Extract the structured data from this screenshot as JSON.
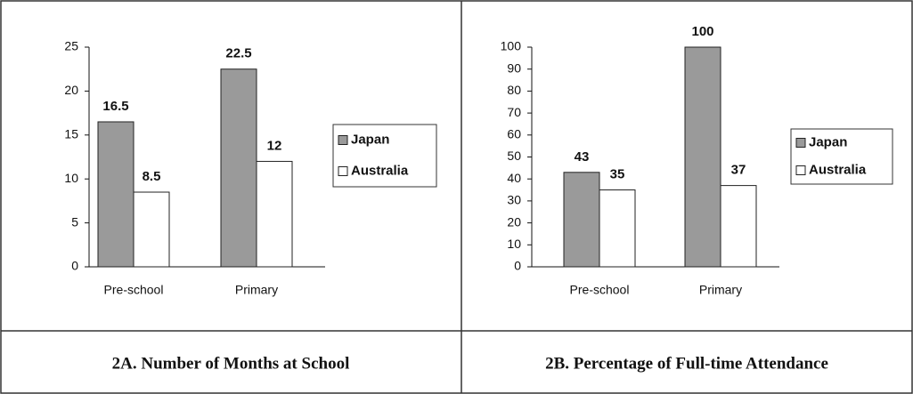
{
  "chart_data": [
    {
      "type": "bar",
      "title": "2A. Number of Months at School",
      "categories": [
        "Pre-school",
        "Primary"
      ],
      "series": [
        {
          "name": "Japan",
          "color": "#9a9a9a",
          "values": [
            16.5,
            22.5
          ]
        },
        {
          "name": "Australia",
          "color": "#ffffff",
          "values": [
            8.5,
            12
          ]
        }
      ],
      "ylim": [
        0,
        25
      ],
      "yticks": [
        0,
        5,
        10,
        15,
        20,
        25
      ]
    },
    {
      "type": "bar",
      "title": "2B. Percentage of Full-time Attendance",
      "categories": [
        "Pre-school",
        "Primary"
      ],
      "series": [
        {
          "name": "Japan",
          "color": "#9a9a9a",
          "values": [
            43,
            100
          ]
        },
        {
          "name": "Australia",
          "color": "#ffffff",
          "values": [
            35,
            37
          ]
        }
      ],
      "ylim": [
        0,
        100
      ],
      "yticks": [
        0,
        10,
        20,
        30,
        40,
        50,
        60,
        70,
        80,
        90,
        100
      ]
    }
  ]
}
